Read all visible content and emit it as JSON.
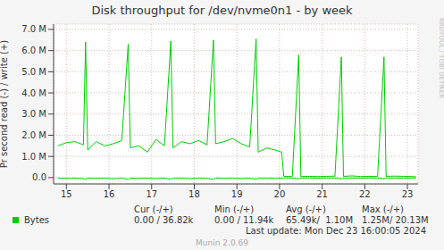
{
  "chart_data": {
    "type": "line",
    "title": "Disk throughput for /dev/nvme0n1 - by week",
    "y_label": "Pr second read (-) / write (+)",
    "x": [
      14.8,
      15.0,
      15.2,
      15.4,
      15.45,
      15.5,
      15.7,
      15.9,
      16.1,
      16.3,
      16.45,
      16.5,
      16.7,
      16.9,
      17.1,
      17.3,
      17.45,
      17.5,
      17.7,
      17.9,
      18.1,
      18.3,
      18.45,
      18.5,
      18.7,
      18.9,
      19.1,
      19.3,
      19.45,
      19.5,
      19.7,
      19.9,
      20.05,
      20.1,
      20.3,
      20.45,
      20.5,
      20.7,
      20.9,
      21.1,
      21.3,
      21.45,
      21.5,
      21.7,
      21.9,
      22.1,
      22.3,
      22.45,
      22.5,
      22.7,
      22.9,
      23.1,
      23.2
    ],
    "series": [
      {
        "name": "Bytes",
        "color": "#00cc00",
        "values": [
          1500000,
          1650000,
          1700000,
          1550000,
          6400000,
          1300000,
          1700000,
          1500000,
          1600000,
          1750000,
          6300000,
          1400000,
          1500000,
          1200000,
          1800000,
          1500000,
          6450000,
          1400000,
          1700000,
          1600000,
          1750000,
          1550000,
          6500000,
          1600000,
          1700000,
          1850000,
          1600000,
          1450000,
          6550000,
          1200000,
          1400000,
          1300000,
          1200000,
          60000,
          50000,
          5800000,
          50000,
          60000,
          50000,
          60000,
          70000,
          5700000,
          60000,
          80000,
          50000,
          60000,
          50000,
          5700000,
          60000,
          70000,
          60000,
          50000,
          40000
        ]
      },
      {
        "name": "Bytes",
        "color": "#00cc00",
        "values": [
          -30000,
          -40000,
          -30000,
          -50000,
          -80000,
          -30000,
          -40000,
          -30000,
          -60000,
          -30000,
          -90000,
          -30000,
          -40000,
          -30000,
          -50000,
          -30000,
          -80000,
          -40000,
          -30000,
          -50000,
          -30000,
          -40000,
          -90000,
          -30000,
          -40000,
          -30000,
          -50000,
          -30000,
          -80000,
          -40000,
          -30000,
          -40000,
          -30000,
          -20000,
          -20000,
          -60000,
          -20000,
          -20000,
          -30000,
          -20000,
          -20000,
          -60000,
          -20000,
          -20000,
          -30000,
          -20000,
          -20000,
          -60000,
          -20000,
          -20000,
          -30000,
          -20000,
          -20000
        ]
      }
    ],
    "xlim": [
      14.7,
      23.25
    ],
    "xticks": [
      15,
      16,
      17,
      18,
      19,
      20,
      21,
      22,
      23
    ],
    "ylim": [
      -300000,
      7250000
    ],
    "yticks": [
      {
        "value": 0,
        "label": "0.0"
      },
      {
        "value": 1000000,
        "label": "1.0 M"
      },
      {
        "value": 2000000,
        "label": "2.0 M"
      },
      {
        "value": 3000000,
        "label": "3.0 M"
      },
      {
        "value": 4000000,
        "label": "4.0 M"
      },
      {
        "value": 5000000,
        "label": "5.0 M"
      },
      {
        "value": 6000000,
        "label": "6.0 M"
      },
      {
        "value": 7000000,
        "label": "7.0 M"
      }
    ],
    "grid": true,
    "stats": {
      "headers": [
        "Cur (-/+)",
        "Min (-/+)",
        "Avg (-/+)",
        "Max (-/+)"
      ],
      "values": [
        "0.00 / 36.82k",
        "0.00 / 11.94k",
        "65.49k/  1.10M",
        "1.25M/ 20.13M"
      ]
    },
    "last_update": "Last update: Mon Dec 23 16:00:05 2024",
    "footer": "Munin 2.0.69",
    "watermark": "RRDTOOL / TOBI OETIKER"
  }
}
